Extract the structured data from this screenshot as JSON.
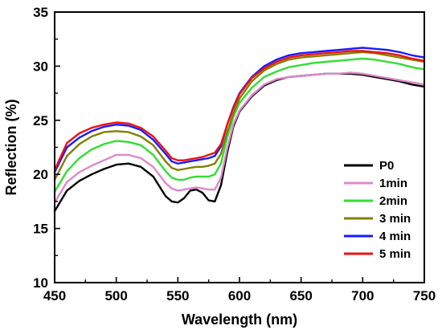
{
  "chart_data": {
    "type": "line",
    "title": "",
    "xlabel": "Wavelength (nm)",
    "ylabel": "Reflection (%)",
    "xlim": [
      450,
      750
    ],
    "ylim": [
      10,
      35
    ],
    "xticks": [
      450,
      500,
      550,
      600,
      650,
      700,
      750
    ],
    "yticks": [
      10,
      15,
      20,
      25,
      30,
      35
    ],
    "grid": false,
    "legend_position": "bottom-right",
    "x": [
      450,
      460,
      470,
      480,
      490,
      500,
      510,
      520,
      530,
      540,
      545,
      550,
      555,
      560,
      565,
      570,
      575,
      580,
      585,
      590,
      595,
      600,
      610,
      620,
      630,
      640,
      650,
      660,
      670,
      680,
      690,
      700,
      710,
      720,
      730,
      740,
      750
    ],
    "series": [
      {
        "name": "P0",
        "color": "#000000",
        "values": [
          16.6,
          18.5,
          19.4,
          20.0,
          20.5,
          20.9,
          21.0,
          20.7,
          19.8,
          18.0,
          17.5,
          17.4,
          17.8,
          18.5,
          18.6,
          18.3,
          17.6,
          17.5,
          19.0,
          22.0,
          24.4,
          25.8,
          27.2,
          28.2,
          28.7,
          29.0,
          29.1,
          29.2,
          29.3,
          29.3,
          29.3,
          29.2,
          29.0,
          28.8,
          28.6,
          28.3,
          28.1
        ]
      },
      {
        "name": "1min",
        "color": "#dd88cc",
        "values": [
          17.4,
          19.3,
          20.2,
          20.8,
          21.3,
          21.8,
          21.8,
          21.5,
          20.7,
          19.2,
          18.7,
          18.5,
          18.6,
          18.7,
          18.8,
          18.7,
          18.6,
          18.6,
          19.7,
          22.4,
          24.6,
          25.9,
          27.3,
          28.3,
          28.8,
          29.0,
          29.1,
          29.2,
          29.3,
          29.3,
          29.4,
          29.3,
          29.1,
          28.9,
          28.7,
          28.5,
          28.3
        ]
      },
      {
        "name": "2min",
        "color": "#33dd33",
        "values": [
          18.4,
          20.3,
          21.5,
          22.3,
          22.8,
          23.1,
          23.0,
          22.7,
          21.8,
          20.3,
          19.7,
          19.5,
          19.5,
          19.7,
          19.8,
          19.8,
          19.8,
          20.0,
          21.0,
          23.4,
          25.3,
          26.6,
          28.0,
          29.0,
          29.5,
          29.9,
          30.1,
          30.3,
          30.4,
          30.5,
          30.6,
          30.7,
          30.6,
          30.4,
          30.2,
          29.9,
          29.7
        ]
      },
      {
        "name": "3 min",
        "color": "#808000",
        "values": [
          19.5,
          21.7,
          22.8,
          23.5,
          23.9,
          24.0,
          23.9,
          23.5,
          22.7,
          21.2,
          20.6,
          20.4,
          20.5,
          20.6,
          20.7,
          20.7,
          20.8,
          21.0,
          21.9,
          23.9,
          25.6,
          27.0,
          28.6,
          29.6,
          30.2,
          30.6,
          30.8,
          30.9,
          31.0,
          31.1,
          31.2,
          31.3,
          31.2,
          31.0,
          30.8,
          30.6,
          30.4
        ]
      },
      {
        "name": "4 min",
        "color": "#1a1aff",
        "values": [
          20.2,
          22.5,
          23.4,
          24.0,
          24.4,
          24.6,
          24.5,
          24.1,
          23.2,
          21.9,
          21.2,
          21.0,
          21.1,
          21.2,
          21.3,
          21.4,
          21.5,
          21.7,
          22.6,
          24.6,
          26.2,
          27.5,
          29.0,
          30.0,
          30.6,
          31.0,
          31.2,
          31.3,
          31.4,
          31.5,
          31.6,
          31.7,
          31.6,
          31.5,
          31.3,
          31.0,
          30.8
        ]
      },
      {
        "name": "5 min",
        "color": "#ee1111",
        "values": [
          20.4,
          22.9,
          23.8,
          24.3,
          24.6,
          24.8,
          24.7,
          24.3,
          23.5,
          22.2,
          21.5,
          21.3,
          21.3,
          21.4,
          21.5,
          21.6,
          21.8,
          22.0,
          22.8,
          24.6,
          26.1,
          27.4,
          28.9,
          29.8,
          30.4,
          30.8,
          31.0,
          31.1,
          31.2,
          31.3,
          31.4,
          31.4,
          31.3,
          31.2,
          31.0,
          30.7,
          30.5
        ]
      }
    ]
  }
}
